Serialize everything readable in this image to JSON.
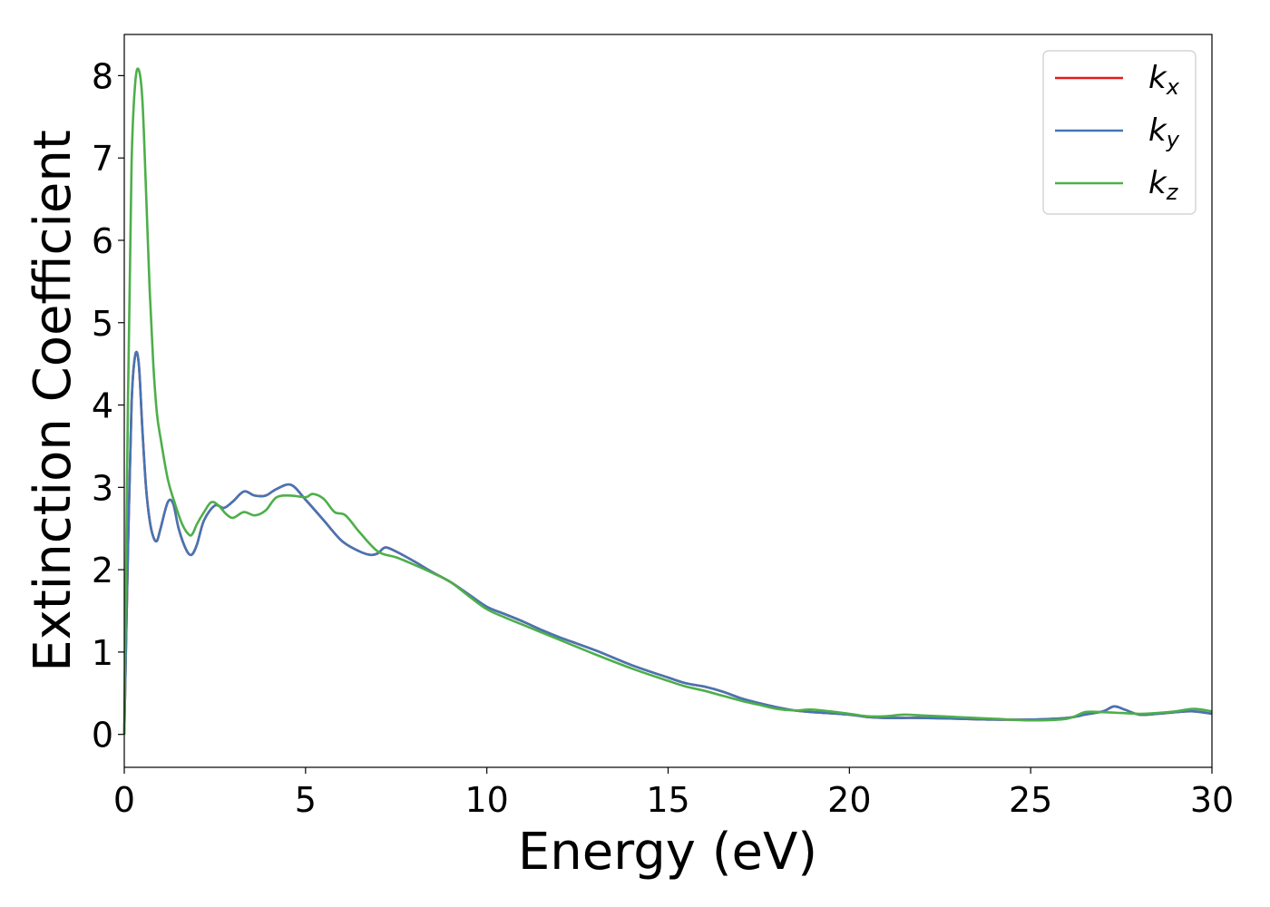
{
  "chart_data": {
    "type": "line",
    "title": "",
    "xlabel": "Energy (eV)",
    "ylabel": "Extinction Coefficient",
    "xlim": [
      0,
      30
    ],
    "ylim": [
      -0.4,
      8.5
    ],
    "xticks": [
      0,
      5,
      10,
      15,
      20,
      25,
      30
    ],
    "yticks": [
      0,
      1,
      2,
      3,
      4,
      5,
      6,
      7,
      8
    ],
    "grid": false,
    "legend_position": "top-right",
    "series": [
      {
        "name": "k",
        "subscript": "x",
        "color": "#e41a1c",
        "x": [
          0,
          0.1,
          0.2,
          0.3,
          0.4,
          0.5,
          0.6,
          0.7,
          0.8,
          0.9,
          1.0,
          1.2,
          1.35,
          1.5,
          1.7,
          1.85,
          2.0,
          2.2,
          2.5,
          2.75,
          3.0,
          3.3,
          3.6,
          3.9,
          4.2,
          4.6,
          5.0,
          5.5,
          6.0,
          6.5,
          6.8,
          7.0,
          7.2,
          7.5,
          8.0,
          8.5,
          9.0,
          9.5,
          10.0,
          10.5,
          11.0,
          11.5,
          12.0,
          13.0,
          14.0,
          15.0,
          15.5,
          16.0,
          16.5,
          17.0,
          17.5,
          18.0,
          18.5,
          19.0,
          20.0,
          20.5,
          21.0,
          21.5,
          22.0,
          23.0,
          24.0,
          25.0,
          26.0,
          26.5,
          27.0,
          27.3,
          27.6,
          28.0,
          28.5,
          29.0,
          29.5,
          30.0
        ],
        "y": [
          0,
          2.2,
          4.0,
          4.6,
          4.5,
          3.7,
          3.0,
          2.6,
          2.4,
          2.35,
          2.5,
          2.82,
          2.8,
          2.5,
          2.25,
          2.18,
          2.3,
          2.6,
          2.78,
          2.75,
          2.83,
          2.95,
          2.9,
          2.9,
          2.98,
          3.03,
          2.85,
          2.6,
          2.35,
          2.22,
          2.18,
          2.2,
          2.27,
          2.22,
          2.1,
          1.97,
          1.85,
          1.7,
          1.55,
          1.46,
          1.37,
          1.27,
          1.18,
          1.02,
          0.84,
          0.69,
          0.62,
          0.58,
          0.52,
          0.44,
          0.38,
          0.33,
          0.29,
          0.27,
          0.24,
          0.21,
          0.2,
          0.2,
          0.2,
          0.19,
          0.18,
          0.18,
          0.2,
          0.24,
          0.28,
          0.34,
          0.3,
          0.24,
          0.25,
          0.27,
          0.28,
          0.25
        ]
      },
      {
        "name": "k",
        "subscript": "y",
        "color": "#4575b4",
        "x": [
          0,
          0.1,
          0.2,
          0.3,
          0.4,
          0.5,
          0.6,
          0.7,
          0.8,
          0.9,
          1.0,
          1.2,
          1.35,
          1.5,
          1.7,
          1.85,
          2.0,
          2.2,
          2.5,
          2.75,
          3.0,
          3.3,
          3.6,
          3.9,
          4.2,
          4.6,
          5.0,
          5.5,
          6.0,
          6.5,
          6.8,
          7.0,
          7.2,
          7.5,
          8.0,
          8.5,
          9.0,
          9.5,
          10.0,
          10.5,
          11.0,
          11.5,
          12.0,
          13.0,
          14.0,
          15.0,
          15.5,
          16.0,
          16.5,
          17.0,
          17.5,
          18.0,
          18.5,
          19.0,
          20.0,
          20.5,
          21.0,
          21.5,
          22.0,
          23.0,
          24.0,
          25.0,
          26.0,
          26.5,
          27.0,
          27.3,
          27.6,
          28.0,
          28.5,
          29.0,
          29.5,
          30.0
        ],
        "y": [
          0,
          2.2,
          4.0,
          4.6,
          4.5,
          3.7,
          3.0,
          2.6,
          2.4,
          2.35,
          2.5,
          2.82,
          2.8,
          2.5,
          2.25,
          2.18,
          2.3,
          2.6,
          2.78,
          2.75,
          2.83,
          2.95,
          2.9,
          2.9,
          2.98,
          3.03,
          2.85,
          2.6,
          2.35,
          2.22,
          2.18,
          2.2,
          2.27,
          2.22,
          2.1,
          1.97,
          1.85,
          1.7,
          1.55,
          1.46,
          1.37,
          1.27,
          1.18,
          1.02,
          0.84,
          0.69,
          0.62,
          0.58,
          0.52,
          0.44,
          0.38,
          0.33,
          0.29,
          0.27,
          0.24,
          0.21,
          0.2,
          0.2,
          0.2,
          0.19,
          0.18,
          0.18,
          0.2,
          0.24,
          0.28,
          0.34,
          0.3,
          0.24,
          0.25,
          0.27,
          0.28,
          0.25
        ]
      },
      {
        "name": "k",
        "subscript": "z",
        "color": "#4daf4a",
        "x": [
          0,
          0.1,
          0.2,
          0.3,
          0.4,
          0.5,
          0.6,
          0.7,
          0.8,
          0.9,
          1.0,
          1.2,
          1.4,
          1.6,
          1.8,
          1.9,
          2.0,
          2.2,
          2.4,
          2.6,
          2.8,
          3.0,
          3.3,
          3.6,
          3.9,
          4.2,
          4.6,
          5.0,
          5.2,
          5.5,
          5.8,
          6.1,
          6.5,
          7.0,
          7.5,
          8.0,
          8.5,
          9.0,
          9.5,
          10.0,
          10.5,
          11.0,
          11.5,
          12.0,
          13.0,
          14.0,
          15.0,
          15.5,
          16.0,
          16.5,
          17.0,
          17.5,
          18.0,
          18.5,
          19.0,
          20.0,
          20.5,
          21.0,
          21.5,
          22.0,
          23.0,
          24.0,
          25.0,
          26.0,
          26.5,
          27.0,
          27.5,
          28.0,
          28.5,
          29.0,
          29.5,
          30.0
        ],
        "y": [
          0,
          4.0,
          6.9,
          7.9,
          8.07,
          7.7,
          6.6,
          5.4,
          4.5,
          3.9,
          3.6,
          3.1,
          2.8,
          2.55,
          2.42,
          2.45,
          2.55,
          2.7,
          2.82,
          2.78,
          2.68,
          2.63,
          2.7,
          2.66,
          2.72,
          2.88,
          2.9,
          2.88,
          2.92,
          2.86,
          2.7,
          2.66,
          2.45,
          2.22,
          2.15,
          2.06,
          1.96,
          1.85,
          1.68,
          1.52,
          1.42,
          1.33,
          1.24,
          1.15,
          0.97,
          0.8,
          0.65,
          0.58,
          0.53,
          0.47,
          0.41,
          0.36,
          0.31,
          0.29,
          0.3,
          0.25,
          0.22,
          0.22,
          0.24,
          0.23,
          0.21,
          0.19,
          0.17,
          0.19,
          0.27,
          0.27,
          0.26,
          0.25,
          0.26,
          0.28,
          0.31,
          0.28
        ]
      }
    ]
  }
}
